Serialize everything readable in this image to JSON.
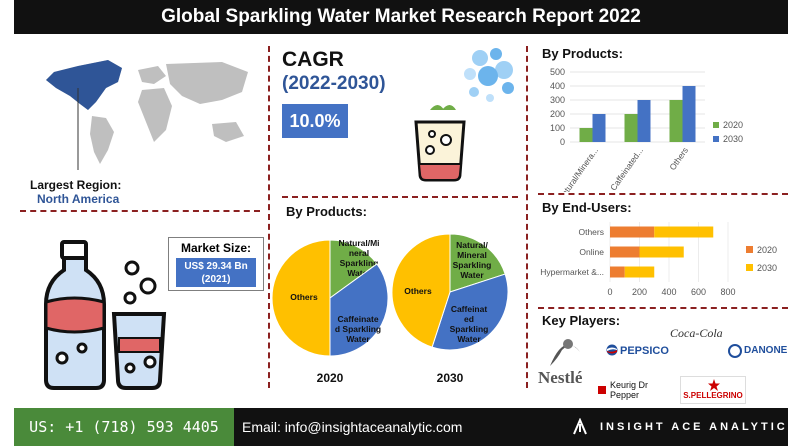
{
  "title": "Global Sparkling Water Market Research Report 2022",
  "cagr": {
    "label": "CAGR",
    "period": "(2022-2030)",
    "value": "10.0%"
  },
  "region": {
    "label": "Largest Region:",
    "value": "North America"
  },
  "market_size": {
    "label": "Market Size:",
    "value_line1": "US$ 29.34 Bn",
    "value_line2": "(2021)"
  },
  "footer": {
    "phone": "US: +1 (718) 593 4405",
    "email": "Email: info@insightaceanalytic.com",
    "brand": "INSIGHT ACE ANALYTIC"
  },
  "key_players": {
    "title": "Key Players:",
    "names": [
      "Nestlé",
      "PEPSICO",
      "Coca-Cola",
      "DANONE",
      "Keurig Dr Pepper",
      "S.PELLEGRINO"
    ]
  },
  "colors": {
    "blue": "#4472c4",
    "green": "#70ad47",
    "orange": "#ed7d31",
    "yellow": "#ffc000",
    "dark_blue": "#2f5597"
  },
  "chart_data": [
    {
      "id": "products-bar",
      "type": "bar",
      "title": "By Products:",
      "categories": [
        "Natural/Minera...",
        "Caffeinated...",
        "Others"
      ],
      "series": [
        {
          "name": "2020",
          "values": [
            100,
            200,
            300
          ],
          "color": "#70ad47"
        },
        {
          "name": "2030",
          "values": [
            200,
            300,
            400
          ],
          "color": "#4472c4"
        }
      ],
      "ylim": [
        0,
        500
      ],
      "yticks": [
        0,
        100,
        200,
        300,
        400,
        500
      ],
      "legend": "right"
    },
    {
      "id": "end-users-bar",
      "type": "bar",
      "orientation": "horizontal",
      "title": "By End-Users:",
      "categories": [
        "Others",
        "Online",
        "Hypermarket &..."
      ],
      "series": [
        {
          "name": "2020",
          "values": [
            300,
            200,
            100
          ],
          "color": "#ed7d31"
        },
        {
          "name": "2030",
          "values": [
            400,
            300,
            200
          ],
          "color": "#ffc000"
        }
      ],
      "stacked": true,
      "xlim": [
        0,
        800
      ],
      "xticks": [
        0,
        200,
        400,
        600,
        800
      ],
      "legend": "right"
    },
    {
      "id": "products-pie-2020",
      "type": "pie",
      "title": "By Products:",
      "label": "2020",
      "slices": [
        {
          "name": "Natural/Mineral Sparkling Water",
          "display": [
            "Natural/Mi",
            "neral",
            "Sparkling",
            "Water"
          ],
          "value": 15,
          "color": "#70ad47"
        },
        {
          "name": "Caffeinated Sparkling Water",
          "display": [
            "Caffeinate",
            "d Sparkling",
            "Water"
          ],
          "value": 35,
          "color": "#4472c4"
        },
        {
          "name": "Others",
          "display": [
            "Others"
          ],
          "value": 50,
          "color": "#ffc000"
        }
      ]
    },
    {
      "id": "products-pie-2030",
      "type": "pie",
      "label": "2030",
      "slices": [
        {
          "name": "Natural/ Mineral Sparkling Water",
          "display": [
            "Natural/",
            "Mineral",
            "Sparkling",
            "Water"
          ],
          "value": 20,
          "color": "#70ad47"
        },
        {
          "name": "Caffeinated Sparkling Water",
          "display": [
            "Caffeinat",
            "ed",
            "Sparkling",
            "Water"
          ],
          "value": 35,
          "color": "#4472c4"
        },
        {
          "name": "Others",
          "display": [
            "Others"
          ],
          "value": 45,
          "color": "#ffc000"
        }
      ]
    }
  ]
}
